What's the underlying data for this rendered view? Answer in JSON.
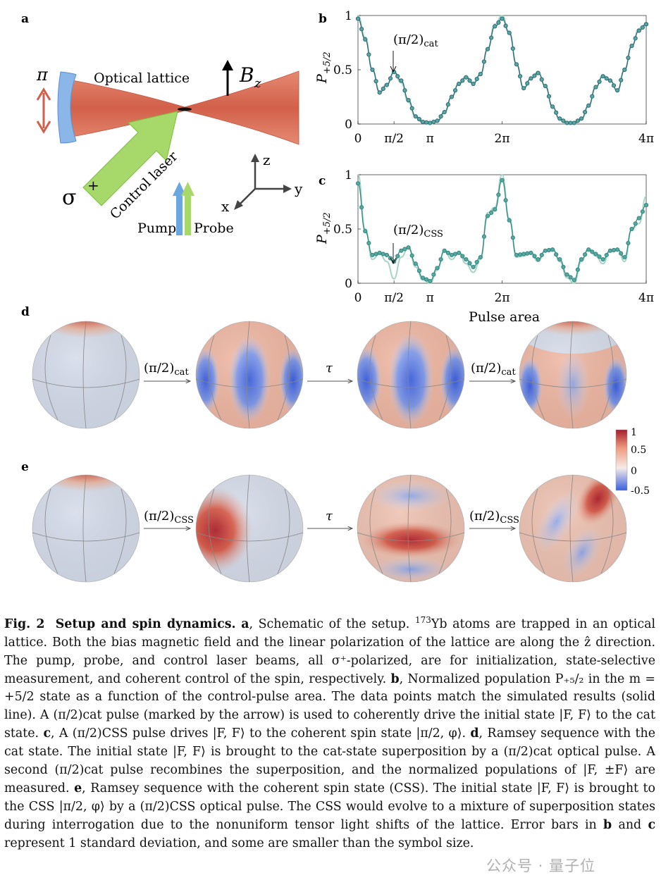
{
  "panel_labels": {
    "a": "a",
    "b": "b",
    "c": "c",
    "d": "d",
    "e": "e"
  },
  "panel_a": {
    "optical_lattice": "Optical lattice",
    "pi_label": "π",
    "bz_label": "B",
    "bz_sub": "z",
    "sigma_label": "σ",
    "sigma_sup": "+",
    "control_laser": "Control laser",
    "pump": "Pump",
    "probe": "Probe",
    "axis_x": "x",
    "axis_y": "y",
    "axis_z": "z",
    "colors": {
      "lattice": "#d9705a",
      "mirror": "#8ab6e8",
      "control": "#9fd96a",
      "pump": "#6aa6e0",
      "probe": "#a6d96a"
    }
  },
  "chart_data": [
    {
      "panel": "b",
      "type": "line",
      "ylabel": "P+5/2",
      "ylim": [
        0,
        1
      ],
      "yticks": [
        "0",
        "0.5",
        "1"
      ],
      "xticks": [
        "0",
        "π/2",
        "π",
        "2π",
        "4π"
      ],
      "xtick_values": [
        0,
        0.5,
        1,
        2,
        4
      ],
      "xlim_pi": [
        0,
        4
      ],
      "annotation": "(π/2)cat",
      "series": [
        {
          "name": "simulation",
          "color": "#a8d4c8",
          "x_pi": [
            0,
            0.1,
            0.2,
            0.3,
            0.4,
            0.5,
            0.6,
            0.7,
            0.8,
            0.9,
            1.0,
            1.1,
            1.2,
            1.3,
            1.4,
            1.5,
            1.6,
            1.7,
            1.8,
            1.9,
            2.0,
            2.1,
            2.2,
            2.3,
            2.4,
            2.5,
            2.6,
            2.7,
            2.8,
            2.9,
            3.0,
            3.1,
            3.2,
            3.3,
            3.4,
            3.5,
            3.6,
            3.7,
            3.8,
            3.9,
            4.0
          ],
          "y": [
            1.0,
            0.8,
            0.5,
            0.3,
            0.37,
            0.47,
            0.38,
            0.2,
            0.06,
            0.01,
            0.0,
            0.02,
            0.1,
            0.25,
            0.38,
            0.44,
            0.38,
            0.45,
            0.7,
            0.92,
            1.0,
            0.85,
            0.55,
            0.33,
            0.42,
            0.48,
            0.35,
            0.15,
            0.04,
            0.0,
            0.0,
            0.04,
            0.16,
            0.34,
            0.45,
            0.4,
            0.3,
            0.5,
            0.72,
            0.88,
            0.92
          ]
        },
        {
          "name": "data",
          "color": "#2c6a75",
          "x_pi": [
            0,
            0.1,
            0.2,
            0.3,
            0.4,
            0.5,
            0.6,
            0.7,
            0.8,
            0.9,
            1.0,
            1.1,
            1.2,
            1.3,
            1.4,
            1.5,
            1.6,
            1.7,
            1.8,
            1.9,
            2.0,
            2.1,
            2.2,
            2.3,
            2.4,
            2.5,
            2.6,
            2.7,
            2.8,
            2.9,
            3.0,
            3.1,
            3.2,
            3.3,
            3.4,
            3.5,
            3.6,
            3.7,
            3.8,
            3.9,
            4.0
          ],
          "y": [
            0.97,
            0.78,
            0.5,
            0.29,
            0.36,
            0.48,
            0.4,
            0.22,
            0.07,
            0.02,
            0.01,
            0.03,
            0.11,
            0.25,
            0.37,
            0.43,
            0.37,
            0.46,
            0.69,
            0.9,
            0.97,
            0.84,
            0.55,
            0.33,
            0.42,
            0.47,
            0.35,
            0.16,
            0.05,
            0.01,
            0.01,
            0.05,
            0.17,
            0.34,
            0.44,
            0.4,
            0.31,
            0.5,
            0.72,
            0.86,
            0.92
          ]
        }
      ]
    },
    {
      "panel": "c",
      "type": "line",
      "ylabel": "P+5/2",
      "ylim": [
        0,
        1
      ],
      "yticks": [
        "0",
        "0.5",
        "1"
      ],
      "xticks": [
        "0",
        "π/2",
        "π",
        "2π",
        "4π"
      ],
      "xtick_values": [
        0,
        0.5,
        1,
        2,
        4
      ],
      "xlim_pi": [
        0,
        4
      ],
      "xlabel": "Pulse area",
      "annotation": "(π/2)CSS",
      "series": [
        {
          "name": "simulation",
          "color": "#a8d4c8",
          "x_pi": [
            0,
            0.1,
            0.2,
            0.3,
            0.4,
            0.5,
            0.6,
            0.7,
            0.8,
            0.9,
            1.0,
            1.1,
            1.2,
            1.3,
            1.4,
            1.5,
            1.6,
            1.7,
            1.8,
            1.9,
            2.0,
            2.1,
            2.2,
            2.3,
            2.4,
            2.5,
            2.6,
            2.7,
            2.8,
            2.9,
            3.0,
            3.1,
            3.2,
            3.3,
            3.4,
            3.5,
            3.6,
            3.7,
            3.8,
            3.9,
            4.0
          ],
          "y": [
            1.0,
            0.5,
            0.22,
            0.27,
            0.2,
            0.04,
            0.24,
            0.33,
            0.15,
            0.03,
            0.0,
            0.12,
            0.3,
            0.22,
            0.28,
            0.18,
            0.1,
            0.22,
            0.65,
            0.7,
            1.0,
            0.6,
            0.24,
            0.25,
            0.28,
            0.2,
            0.3,
            0.32,
            0.2,
            0.05,
            0.0,
            0.2,
            0.32,
            0.25,
            0.18,
            0.3,
            0.32,
            0.2,
            0.5,
            0.55,
            0.8
          ]
        },
        {
          "name": "data",
          "color": "#2f8a80",
          "x_pi": [
            0,
            0.1,
            0.2,
            0.3,
            0.4,
            0.5,
            0.6,
            0.7,
            0.8,
            0.9,
            1.0,
            1.1,
            1.2,
            1.3,
            1.4,
            1.5,
            1.6,
            1.7,
            1.8,
            1.9,
            2.0,
            2.1,
            2.2,
            2.3,
            2.4,
            2.5,
            2.6,
            2.7,
            2.8,
            2.9,
            3.0,
            3.1,
            3.2,
            3.3,
            3.4,
            3.5,
            3.6,
            3.7,
            3.8,
            3.9,
            4.0
          ],
          "y": [
            0.92,
            0.48,
            0.26,
            0.28,
            0.26,
            0.2,
            0.3,
            0.33,
            0.18,
            0.05,
            0.02,
            0.14,
            0.3,
            0.26,
            0.28,
            0.22,
            0.15,
            0.24,
            0.62,
            0.68,
            0.95,
            0.58,
            0.26,
            0.27,
            0.28,
            0.22,
            0.3,
            0.31,
            0.22,
            0.08,
            0.03,
            0.22,
            0.31,
            0.27,
            0.22,
            0.3,
            0.31,
            0.24,
            0.5,
            0.6,
            0.72
          ]
        }
      ]
    }
  ],
  "panel_d": {
    "arrow1": "(π/2)",
    "arrow1_sub": "cat",
    "arrow2": "τ",
    "arrow3": "(π/2)",
    "arrow3_sub": "cat"
  },
  "panel_e": {
    "arrow1": "(π/2)",
    "arrow1_sub": "CSS",
    "arrow2": "τ",
    "arrow3": "(π/2)",
    "arrow3_sub": "CSS"
  },
  "colorbar": {
    "ticks": [
      "1",
      "0.5",
      "0",
      "-0.5"
    ],
    "colors": [
      "#b2182b",
      "#f4a582",
      "#f7f7f7",
      "#4a6fe3"
    ]
  },
  "caption": {
    "fig_label": "Fig. 2",
    "fig_title": "Setup and spin dynamics.",
    "a_label": "a",
    "a_text_1": ", Schematic of the setup.",
    "a_isotope": "173",
    "a_text_2": "Yb atoms are trapped in an optical lattice. Both the bias magnetic field and the linear polarization of the lattice are along the ẑ direction. The pump, probe, and control laser beams, all σ⁺-polarized, are for initialization, state-selective measurement, and coherent control of the spin, respectively.",
    "b_label": "b",
    "b_text": ", Normalized population P₊₅/₂ in the m = +5/2 state as a function of the control-pulse area. The data points match the simulated results (solid line). A (π/2)cat pulse (marked by the arrow) is used to coherently drive the initial state |F, F⟩ to the cat state.",
    "c_label": "c",
    "c_text": ", A (π/2)CSS pulse drives |F, F⟩ to the coherent spin state |π/2, φ⟩.",
    "d_label": "d",
    "d_text": ", Ramsey sequence with the cat state. The initial state |F, F⟩ is brought to the cat-state superposition by a (π/2)cat optical pulse. A second (π/2)cat pulse recombines the superposition, and the normalized populations of |F, ±F⟩ are measured.",
    "e_label": "e",
    "e_text": ", Ramsey sequence with the coherent spin state (CSS). The initial state |F, F⟩ is brought to the CSS |π/2, φ⟩ by a (π/2)CSS optical pulse. The CSS would evolve to a mixture of superposition states during interrogation due to the nonuniform tensor light shifts of the lattice. Error bars in",
    "b_label2": "b",
    "mid_text": "and",
    "c_label2": "c",
    "end_text": "represent 1 standard deviation, and some are smaller than the symbol size."
  },
  "watermark": "公众号 · 量子位"
}
